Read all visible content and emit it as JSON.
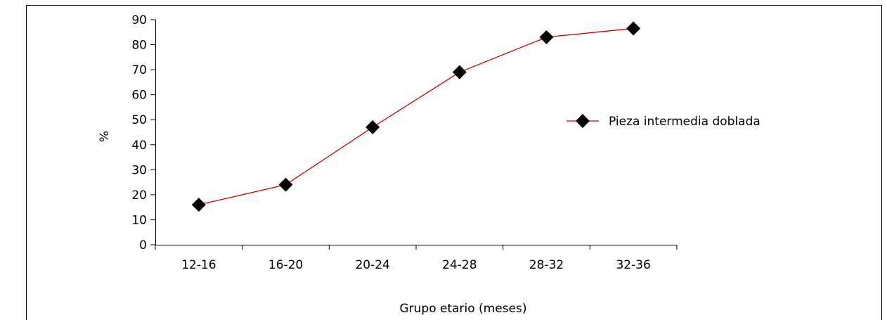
{
  "chart_data": {
    "type": "line",
    "categories": [
      "12-16",
      "16-20",
      "20-24",
      "24-28",
      "28-32",
      "32-36"
    ],
    "series": [
      {
        "name": "Pieza intermedia doblada",
        "values": [
          16,
          24,
          47,
          69,
          83,
          86.5
        ],
        "color": "#cc0000",
        "marker": "diamond",
        "marker_color": "#000000"
      }
    ],
    "xlabel": "Grupo etario (meses)",
    "ylabel": "%",
    "ylim": [
      0,
      90
    ],
    "yticks": [
      0,
      10,
      20,
      30,
      40,
      50,
      60,
      70,
      80,
      90
    ],
    "grid": false,
    "legend_position": "right"
  }
}
